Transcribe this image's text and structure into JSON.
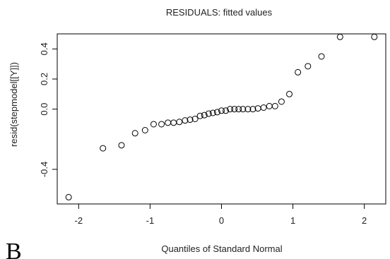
{
  "chart_data": {
    "type": "scatter",
    "title": "RESIDUALS: fitted values",
    "xlabel": "Quantiles of Standard Normal",
    "ylabel": "resid(stepmodel[[Y]])",
    "xlim": [
      -2.3,
      2.3
    ],
    "ylim": [
      -0.63,
      0.5
    ],
    "x_ticks": [
      -2,
      -1,
      0,
      1,
      2
    ],
    "x_tick_labels": [
      "-2",
      "-1",
      "0",
      "1",
      "2"
    ],
    "y_ticks": [
      -0.4,
      0.0,
      0.2,
      0.4
    ],
    "y_tick_labels": [
      "-0.4",
      "0.0",
      "0.2",
      "0.4"
    ],
    "grid": false,
    "legend": "none",
    "marker": "open-circle",
    "series": [
      {
        "x": [
          -2.14,
          -1.66,
          -1.4,
          -1.21,
          -1.07,
          -0.95,
          -0.84,
          -0.75,
          -0.67,
          -0.59,
          -0.51,
          -0.44,
          -0.37,
          -0.3,
          -0.24,
          -0.18,
          -0.12,
          -0.06,
          0.0,
          0.06,
          0.12,
          0.18,
          0.24,
          0.3,
          0.37,
          0.44,
          0.51,
          0.59,
          0.67,
          0.75,
          0.84,
          0.95,
          1.07,
          1.21,
          1.4,
          1.66,
          2.14
        ],
        "y": [
          -0.585,
          -0.26,
          -0.24,
          -0.16,
          -0.14,
          -0.1,
          -0.1,
          -0.09,
          -0.09,
          -0.085,
          -0.075,
          -0.07,
          -0.065,
          -0.045,
          -0.04,
          -0.03,
          -0.025,
          -0.02,
          -0.01,
          -0.01,
          0.0,
          0.0,
          0.0,
          0.0,
          0.0,
          0.0,
          0.005,
          0.01,
          0.02,
          0.02,
          0.05,
          0.1,
          0.245,
          0.285,
          0.35,
          0.48,
          0.48
        ]
      }
    ]
  },
  "figure_label": "B"
}
